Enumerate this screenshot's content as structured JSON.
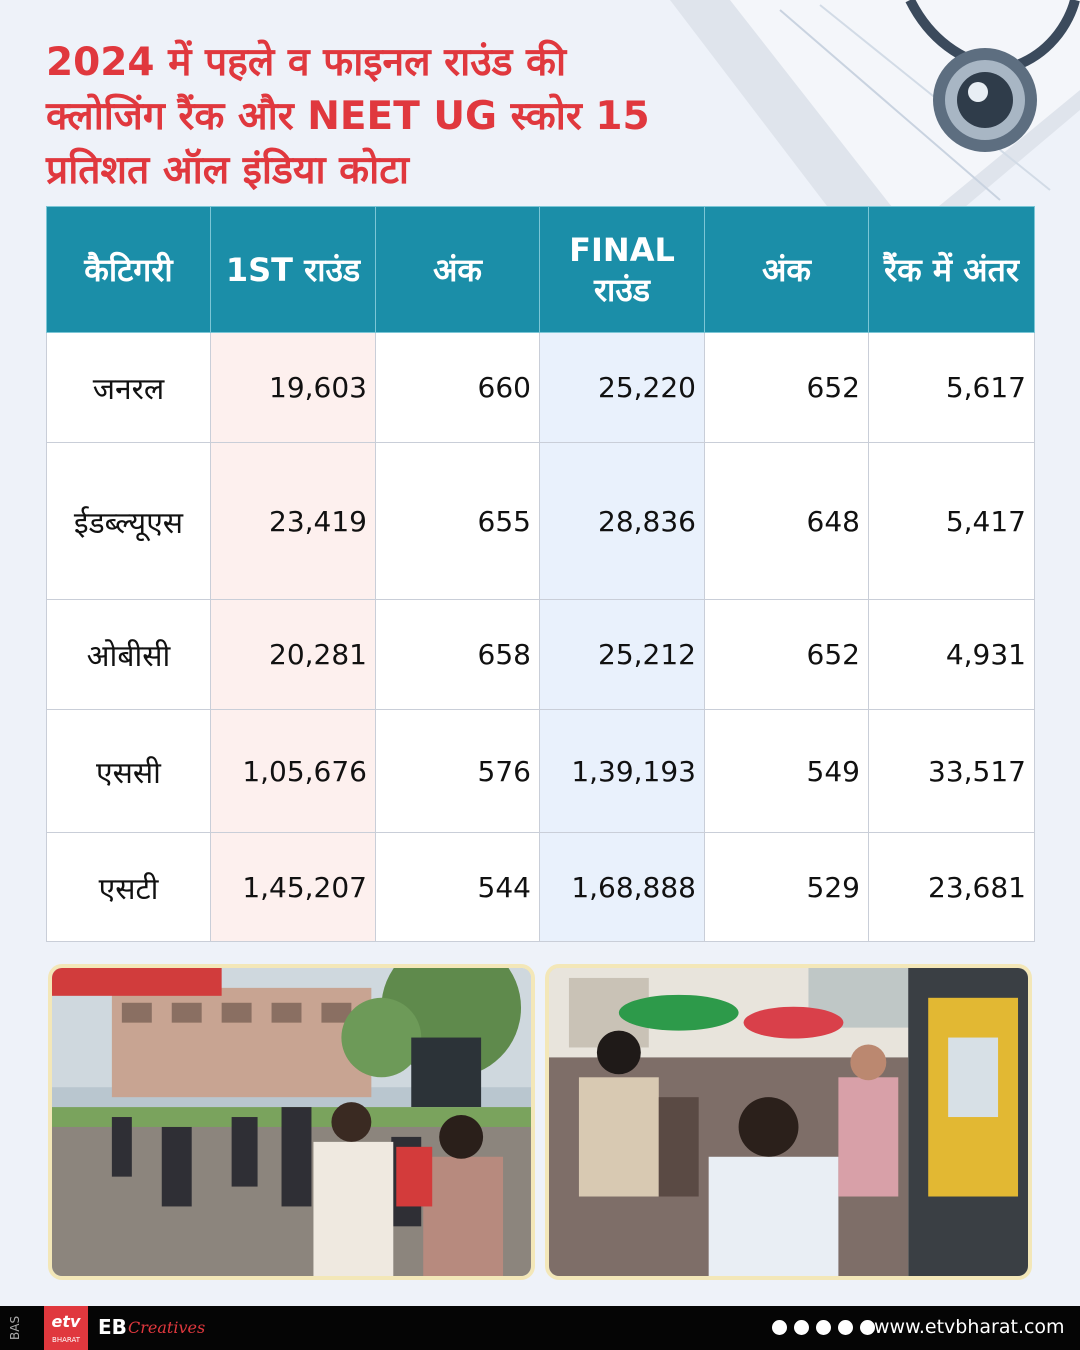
{
  "title_lines": [
    "2024 में पहले व फाइनल राउंड की",
    "क्लोजिंग रैंक और NEET UG स्कोर 15",
    "प्रतिशत ऑल इंडिया कोटा"
  ],
  "table": {
    "headers": [
      "कैटिगरी",
      "1ST राउंड",
      "अंक",
      "FINAL राउंड",
      "अंक",
      "रैंक में अंतर"
    ],
    "rows": [
      [
        "जनरल",
        "19,603",
        "660",
        "25,220",
        "652",
        "5,617"
      ],
      [
        "ईडब्ल्यूएस",
        "23,419",
        "655",
        "28,836",
        "648",
        "5,417"
      ],
      [
        "ओबीसी",
        "20,281",
        "658",
        "25,212",
        "652",
        "4,931"
      ],
      [
        "एससी",
        "1,05,676",
        "576",
        "1,39,193",
        "549",
        "33,517"
      ],
      [
        "एसटी",
        "1,45,207",
        "544",
        "1,68,888",
        "529",
        "23,681"
      ]
    ]
  },
  "images": {
    "left": "students-walking-photo",
    "right": "crowd-exam-centre-photo",
    "decoration": "stethoscope-on-paper"
  },
  "footer": {
    "bas": "BAS",
    "logo_main": "etv",
    "logo_sub": "BHARAT",
    "eb": "EB",
    "creatives": "Creatives",
    "social_icons": [
      "facebook-icon",
      "x-icon",
      "instagram-icon",
      "youtube-icon",
      "whatsapp-icon"
    ],
    "url": "www.etvbharat.com"
  },
  "colors": {
    "title": "#e0383e",
    "header_bg": "#1b8ea8",
    "col_round1_bg": "#fdf0ee",
    "col_final_bg": "#e9f1fc",
    "page_bg": "#eef2f9",
    "footer_bg": "#050505"
  }
}
